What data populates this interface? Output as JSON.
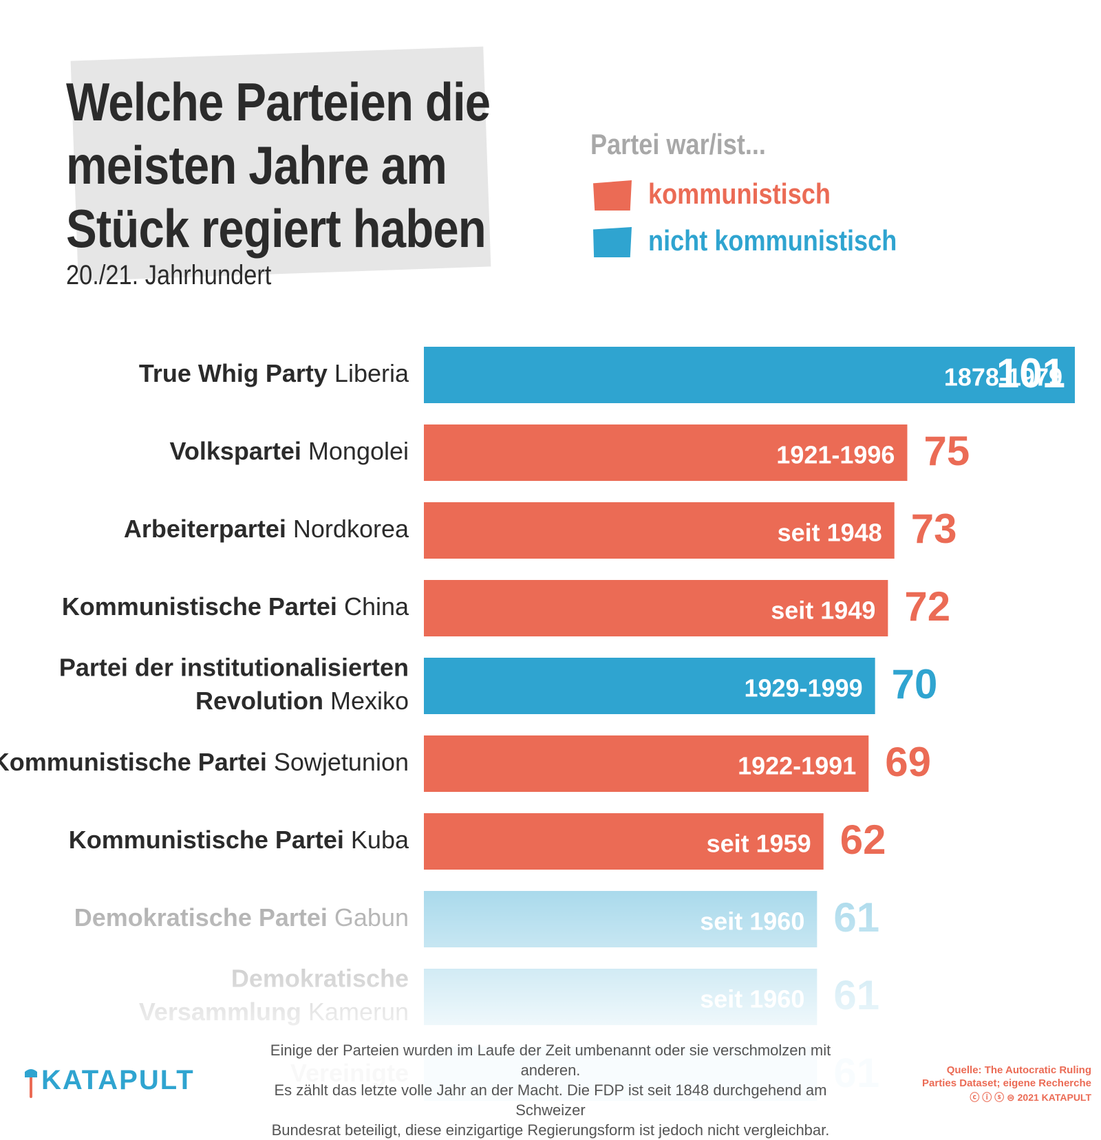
{
  "header": {
    "title": "Welche Parteien die\nmeisten Jahre am\nStück regiert haben",
    "subtitle": "20./21. Jahrhundert"
  },
  "legend": {
    "title": "Partei war/ist...",
    "items": [
      {
        "label": "kommunistisch",
        "color": "#eb6b55"
      },
      {
        "label": "nicht kommunistisch",
        "color": "#2fa4d0"
      }
    ]
  },
  "chart_data": {
    "type": "bar",
    "orientation": "horizontal",
    "title": "Welche Parteien die meisten Jahre am Stück regiert haben",
    "xlabel": "",
    "ylabel": "",
    "xlim": [
      0,
      101
    ],
    "unit": "Jahre",
    "rows": [
      {
        "party": "True Whig Party",
        "country": "Liberia",
        "period": "1878-1979",
        "years": 101,
        "communist": false
      },
      {
        "party": "Volkspartei",
        "country": "Mongolei",
        "period": "1921-1996",
        "years": 75,
        "communist": true
      },
      {
        "party": "Arbeiterpartei",
        "country": "Nordkorea",
        "period": "seit 1948",
        "years": 73,
        "communist": true
      },
      {
        "party": "Kommunistische Partei",
        "country": "China",
        "period": "seit 1949",
        "years": 72,
        "communist": true
      },
      {
        "party_line1": "Partei der institutionalisierten",
        "party": "Revolution",
        "country": "Mexiko",
        "period": "1929-1999",
        "years": 70,
        "communist": false
      },
      {
        "party": "Kommunistische Partei",
        "country": "Sowjetunion",
        "period": "1922-1991",
        "years": 69,
        "communist": true
      },
      {
        "party": "Kommunistische Partei",
        "country": "Kuba",
        "period": "seit 1959",
        "years": 62,
        "communist": true
      },
      {
        "party": "Demokratische Partei",
        "country": "Gabun",
        "period": "seit 1960",
        "years": 61,
        "communist": false
      },
      {
        "party_line1": "Demokratische",
        "party": "Versammlung",
        "country": "Kamerun",
        "period": "seit 1960",
        "years": 61,
        "communist": false
      },
      {
        "party": "Vereinigte",
        "country": "",
        "period": "",
        "years": 61,
        "communist": false
      }
    ],
    "colors": {
      "communist": "#eb6b55",
      "non_communist": "#2fa4d0"
    }
  },
  "footnote": "Einige der Parteien wurden im Laufe der Zeit umbenannt oder sie verschmolzen mit anderen.\nEs zählt das letzte volle Jahr an der Macht. Die FDP ist seit 1848 durchgehend am Schweizer\nBundesrat beteiligt, diese einzigartige Regierungsform ist jedoch nicht vergleichbar.",
  "brand": {
    "name": "KATAPULT"
  },
  "source": {
    "text": "Quelle: The Autocratic Ruling\nParties Dataset; eigene Recherche",
    "copyright": "2021 KATAPULT"
  }
}
